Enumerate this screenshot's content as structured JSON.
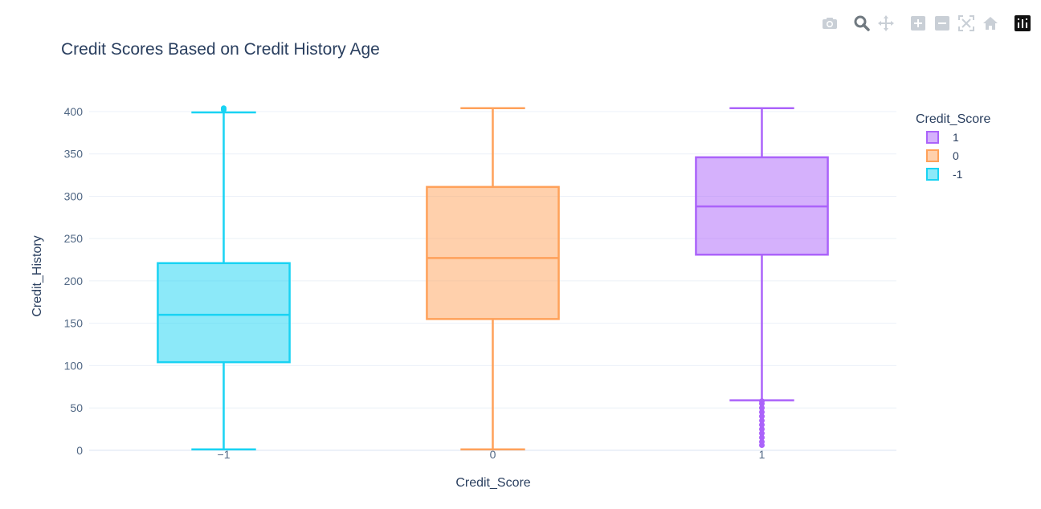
{
  "modebar": {
    "buttons": [
      "camera-icon",
      "zoom-icon",
      "pan-icon",
      "zoom-in-icon",
      "zoom-out-icon",
      "autoscale-icon",
      "home-icon",
      "plotly-logo-icon"
    ]
  },
  "chart_data": {
    "type": "box",
    "title": "Credit Scores Based on Credit History Age",
    "xlabel": "Credit_Score",
    "ylabel": "Credit_History",
    "categories": [
      "−1",
      "0",
      "1"
    ],
    "ylim": [
      -3,
      418
    ],
    "yticks": [
      "0",
      "50",
      "100",
      "150",
      "200",
      "250",
      "300",
      "350",
      "400"
    ],
    "grid": true,
    "legend": {
      "title": "Credit_Score",
      "placement": "right",
      "entries": [
        "1",
        "0",
        "-1"
      ]
    },
    "series": [
      {
        "name": "-1",
        "category": "−1",
        "color": "#19d3f3",
        "min": 1,
        "q1": 104,
        "median": 160,
        "q3": 221,
        "max": 399,
        "outliers": [
          402,
          403,
          404
        ]
      },
      {
        "name": "0",
        "category": "0",
        "color": "#ffa15a",
        "min": 1,
        "q1": 155,
        "median": 227,
        "q3": 311,
        "max": 404,
        "outliers": []
      },
      {
        "name": "1",
        "category": "1",
        "color": "#ab63fa",
        "min": 59,
        "q1": 231,
        "median": 288,
        "q3": 346,
        "max": 404,
        "outliers": [
          6,
          10,
          15,
          20,
          25,
          30,
          35,
          40,
          45,
          50,
          55,
          58
        ]
      }
    ]
  }
}
